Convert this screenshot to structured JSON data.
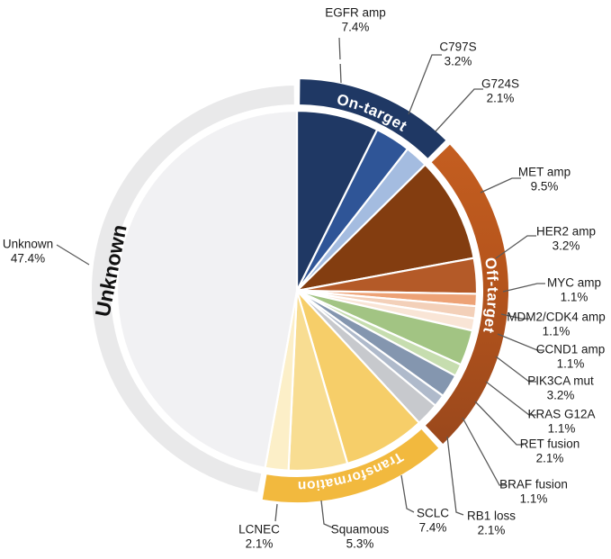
{
  "figure": {
    "background": "#FFFFFF",
    "description": "Pie chart of resistance mechanisms with category rings"
  },
  "chart_data": {
    "type": "pie",
    "title": "",
    "unit": "%",
    "legend": "none",
    "leader_line_color": "#5A5A5A",
    "label_text_color": "#1A1A1A",
    "slices": [
      {
        "label": "EGFR amp",
        "pct_label": "7.4%",
        "value": 7.4,
        "color": "#1F3864",
        "category": "On-target"
      },
      {
        "label": "C797S",
        "pct_label": "3.2%",
        "value": 3.2,
        "color": "#2F5597",
        "category": "On-target"
      },
      {
        "label": "G724S",
        "pct_label": "2.1%",
        "value": 2.1,
        "color": "#A4BCE0",
        "category": "On-target"
      },
      {
        "label": "MET amp",
        "pct_label": "9.5%",
        "value": 9.5,
        "color": "#833D10",
        "category": "Off-target"
      },
      {
        "label": "HER2 amp",
        "pct_label": "3.2%",
        "value": 3.2,
        "color": "#B45A28",
        "category": "Off-target"
      },
      {
        "label": "MYC amp",
        "pct_label": "1.1%",
        "value": 1.1,
        "color": "#EDA276",
        "category": "Off-target"
      },
      {
        "label": "MDM2/CDK4 amp",
        "pct_label": "1.1%",
        "value": 1.1,
        "color": "#F3D0B9",
        "category": "Off-target"
      },
      {
        "label": "CCND1 amp",
        "pct_label": "1.1%",
        "value": 1.1,
        "color": "#F9E5D6",
        "category": "Off-target"
      },
      {
        "label": "PIK3CA mut",
        "pct_label": "3.2%",
        "value": 3.2,
        "color": "#A2C483",
        "category": "Off-target"
      },
      {
        "label": "KRAS G12A",
        "pct_label": "1.1%",
        "value": 1.1,
        "color": "#C6DDAF",
        "category": "Off-target"
      },
      {
        "label": "RET fusion",
        "pct_label": "2.1%",
        "value": 2.1,
        "color": "#8496AF",
        "category": "Off-target"
      },
      {
        "label": "BRAF fusion",
        "pct_label": "1.1%",
        "value": 1.1,
        "color": "#AFBACB",
        "category": "Off-target"
      },
      {
        "label": "RB1 loss",
        "pct_label": "2.1%",
        "value": 2.1,
        "color": "#C7C9CD",
        "category": "Off-target"
      },
      {
        "label": "SCLC",
        "pct_label": "7.4%",
        "value": 7.4,
        "color": "#F6CE69",
        "category": "Transformation"
      },
      {
        "label": "Squamous",
        "pct_label": "5.3%",
        "value": 5.3,
        "color": "#F8DD92",
        "category": "Transformation"
      },
      {
        "label": "LCNEC",
        "pct_label": "2.1%",
        "value": 2.1,
        "color": "#FCEFC8",
        "category": "Transformation"
      },
      {
        "label": "Unknown",
        "pct_label": "47.4%",
        "value": 47.4,
        "color": "#F1F1F3",
        "category": "Unknown"
      }
    ],
    "categories": [
      {
        "name": "On-target",
        "ring_color": "#1F3864",
        "label_color": "#FFFFFF",
        "label_style": "arc"
      },
      {
        "name": "Off-target",
        "ring_color": "#B5541C",
        "ring_color_top": "#C45E20",
        "ring_color_bottom": "#9A481C",
        "label_color": "#FFFFFF",
        "label_style": "arc"
      },
      {
        "name": "Transformation",
        "ring_color": "#F2B93E",
        "label_color": "#FFFFFF",
        "label_style": "arc"
      },
      {
        "name": "Unknown",
        "ring_color": "#E9E9EA",
        "label_color": "#111111",
        "label_style": "straight"
      }
    ]
  }
}
